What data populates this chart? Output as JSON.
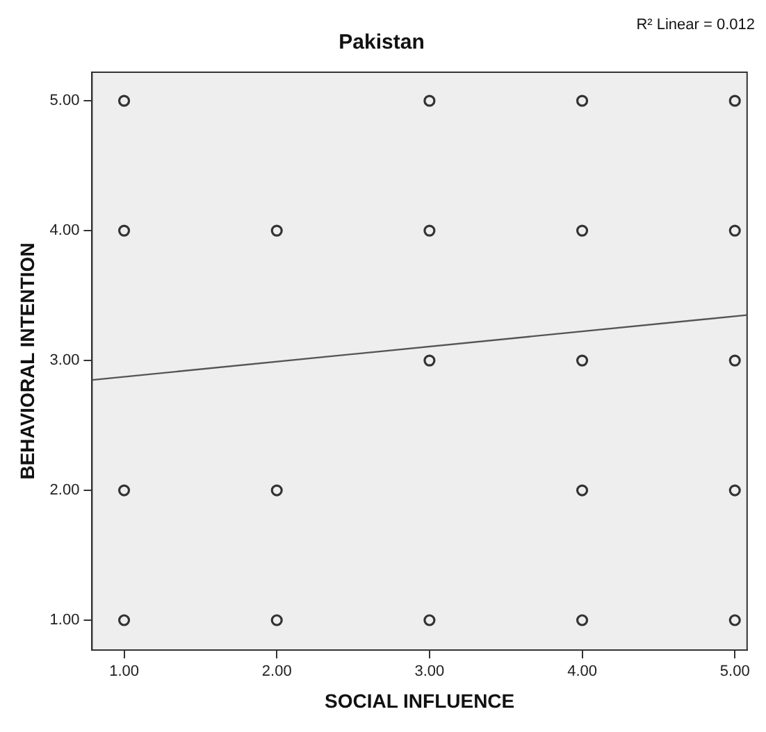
{
  "chart_data": {
    "type": "scatter",
    "title": "Pakistan",
    "xlabel": "SOCIAL INFLUENCE",
    "ylabel": "BEHAVIORAL INTENTION",
    "annotations": [
      "R² Linear = 0.012"
    ],
    "xlim": [
      0.79,
      5.08
    ],
    "ylim": [
      0.77,
      5.22
    ],
    "xticks": [
      {
        "value": 1,
        "label": "1.00"
      },
      {
        "value": 2,
        "label": "2.00"
      },
      {
        "value": 3,
        "label": "3.00"
      },
      {
        "value": 4,
        "label": "4.00"
      },
      {
        "value": 5,
        "label": "5.00"
      }
    ],
    "yticks": [
      {
        "value": 1,
        "label": "1.00"
      },
      {
        "value": 2,
        "label": "2.00"
      },
      {
        "value": 3,
        "label": "3.00"
      },
      {
        "value": 4,
        "label": "4.00"
      },
      {
        "value": 5,
        "label": "5.00"
      }
    ],
    "grid": false,
    "legend": false,
    "marker": "circle",
    "series": [
      {
        "type": "scatter",
        "color": "#333333",
        "x": [
          1,
          3,
          4,
          5,
          1,
          2,
          3,
          4,
          5,
          3,
          4,
          5,
          1,
          2,
          4,
          5,
          1,
          2,
          3,
          4,
          5
        ],
        "values": [
          5,
          5,
          5,
          5,
          4,
          4,
          4,
          4,
          4,
          3,
          3,
          3,
          2,
          2,
          2,
          2,
          1,
          1,
          1,
          1,
          1
        ]
      },
      {
        "type": "line",
        "color": "#555555",
        "x": [
          0.79,
          5.08
        ],
        "values": [
          2.85,
          3.35
        ],
        "marker": "none"
      }
    ]
  }
}
